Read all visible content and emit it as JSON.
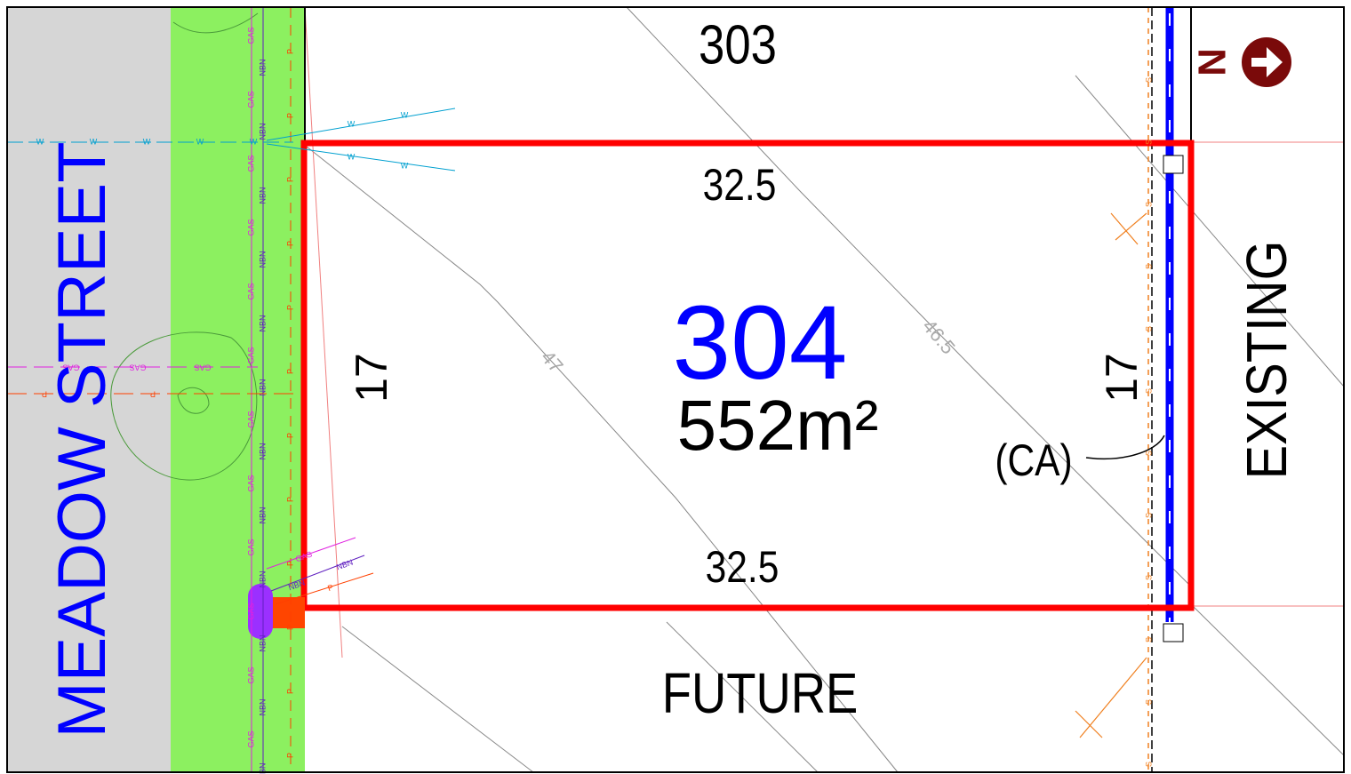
{
  "street": "MEADOW STREET",
  "north": "N",
  "lots": {
    "top": {
      "number": "303"
    },
    "main": {
      "number": "304",
      "area": "552m²",
      "top_side": "32.5",
      "bottom_side": "32.5",
      "left_side": "17",
      "right_side": "17",
      "easement": "(CA)"
    },
    "bottom": "FUTURE",
    "right": "EXISTING"
  },
  "contours": [
    "47",
    "46.5"
  ],
  "services": {
    "gas": "GAS",
    "nbn": "NBN",
    "power": "P",
    "water": "W",
    "sewer": "S"
  }
}
